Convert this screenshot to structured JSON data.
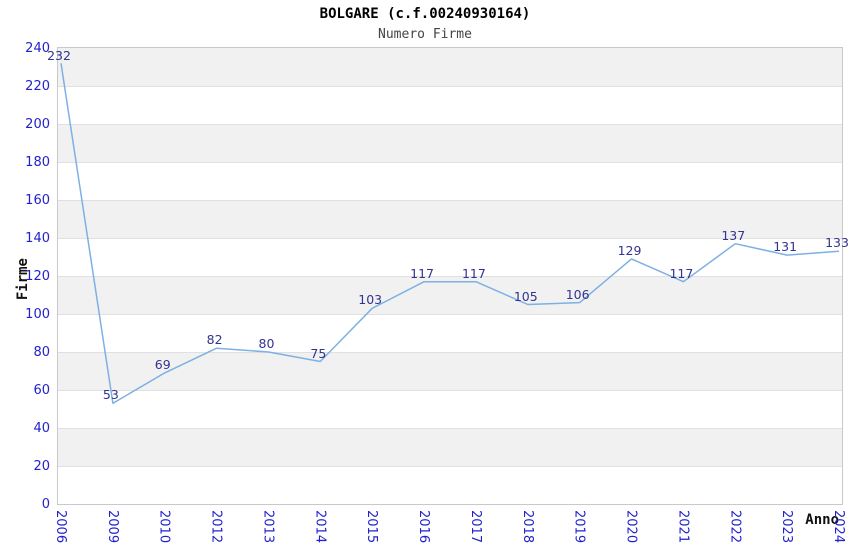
{
  "chart_data": {
    "type": "line",
    "title": "BOLGARE (c.f.00240930164)",
    "subtitle": "Numero Firme",
    "xlabel": "Anno",
    "ylabel": "Firme",
    "categories": [
      "2006",
      "2009",
      "2010",
      "2012",
      "2013",
      "2014",
      "2015",
      "2016",
      "2017",
      "2018",
      "2019",
      "2020",
      "2021",
      "2022",
      "2023",
      "2024"
    ],
    "values": [
      232,
      53,
      69,
      82,
      80,
      75,
      103,
      117,
      117,
      105,
      106,
      129,
      117,
      137,
      131,
      133
    ],
    "ylim": [
      0,
      240
    ],
    "ytick_step": 20,
    "legend": "none",
    "grid": "horizontal-alternating-bands",
    "colors": {
      "line": "#7db1e3",
      "axis_tick_labels": "#2222cc",
      "data_labels": "#333391",
      "band_fill": "#f1f1f1",
      "grid_line": "#e0e0e0",
      "plot_border": "#c9c9c9",
      "title_text": "#000000",
      "subtitle_text": "#444444",
      "axis_title_text": "#111111"
    }
  }
}
